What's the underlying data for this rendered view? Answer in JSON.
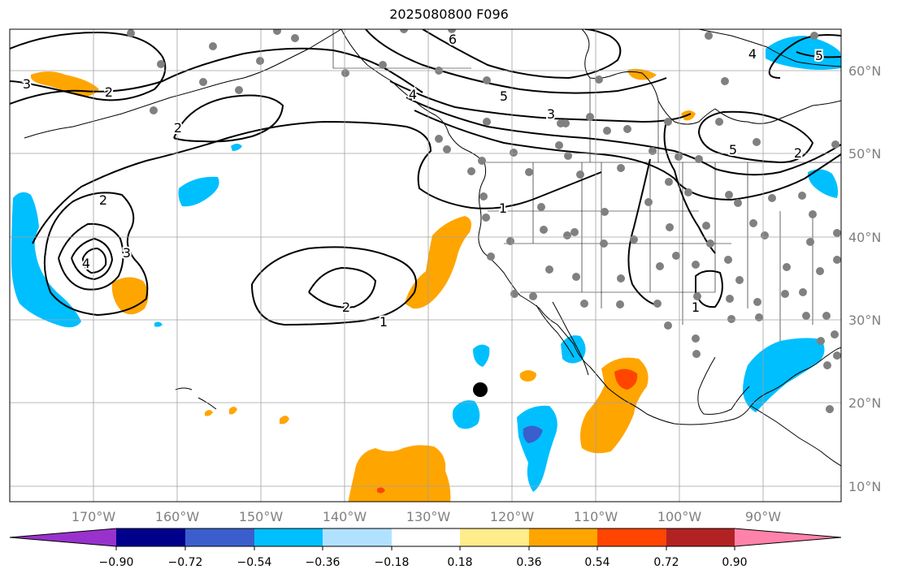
{
  "title": "2025080800 F096",
  "longitude_labels": [
    "170°W",
    "160°W",
    "150°W",
    "140°W",
    "130°W",
    "120°W",
    "110°W",
    "100°W",
    "90°W"
  ],
  "latitude_labels": [
    "60°N",
    "50°N",
    "40°N",
    "30°N",
    "20°N",
    "10°N"
  ],
  "colorbar": {
    "ticks": [
      "−0.90",
      "−0.72",
      "−0.54",
      "−0.36",
      "−0.18",
      "0.18",
      "0.36",
      "0.54",
      "0.72",
      "0.90"
    ],
    "colors": [
      "#9932cc",
      "#00008b",
      "#3a5fcd",
      "#00bfff",
      "#b0e2ff",
      "#ffffff",
      "#ffec8b",
      "#ffa500",
      "#ff4500",
      "#b22222",
      "#ff82ab"
    ]
  },
  "contour_labels": [
    {
      "id": "c1",
      "text": "3"
    },
    {
      "id": "c2",
      "text": "2"
    },
    {
      "id": "c3",
      "text": "2"
    },
    {
      "id": "c4",
      "text": "2"
    },
    {
      "id": "c5",
      "text": "4"
    },
    {
      "id": "c6",
      "text": "3"
    },
    {
      "id": "c7",
      "text": "2"
    },
    {
      "id": "c8",
      "text": "1"
    },
    {
      "id": "c9",
      "text": "1"
    },
    {
      "id": "c10",
      "text": "6"
    },
    {
      "id": "c11",
      "text": "5"
    },
    {
      "id": "c12",
      "text": "4"
    },
    {
      "id": "c13",
      "text": "3"
    },
    {
      "id": "c14",
      "text": "5"
    },
    {
      "id": "c15",
      "text": "2"
    },
    {
      "id": "c16",
      "text": "4"
    },
    {
      "id": "c17",
      "text": "5"
    },
    {
      "id": "c18",
      "text": "1"
    }
  ]
}
